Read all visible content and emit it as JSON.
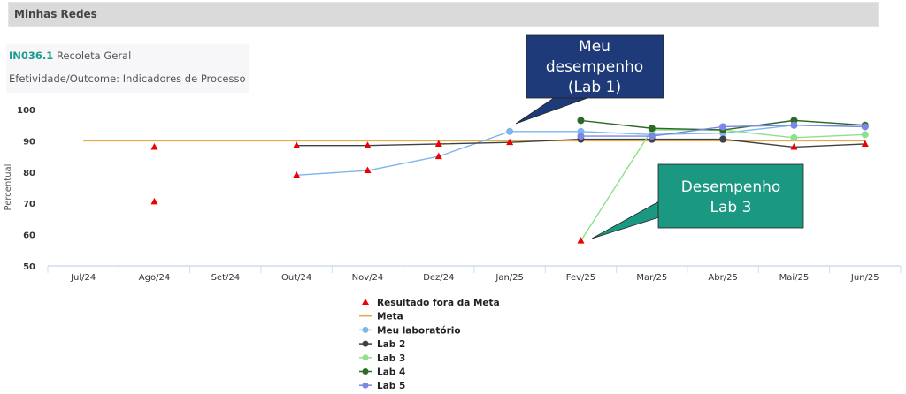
{
  "header": {
    "title": "Minhas Redes"
  },
  "info": {
    "code": "IN036.1",
    "name": "Recoleta Geral",
    "subtitle": "Efetividade/Outcome: Indicadores de Processo"
  },
  "callouts": [
    {
      "lines": [
        "Meu",
        "desempenho",
        "(Lab 1)"
      ],
      "bg": "#1e3a78"
    },
    {
      "lines": [
        "Desempenho",
        "Lab 3"
      ],
      "bg": "#1b9882"
    }
  ],
  "chart_data": {
    "type": "line",
    "title": "",
    "xlabel": "",
    "ylabel": "Percentual",
    "ylim": [
      50,
      100
    ],
    "yticks": [
      50,
      60,
      70,
      80,
      90,
      100
    ],
    "categories": [
      "Jul/24",
      "Ago/24",
      "Set/24",
      "Out/24",
      "Nov/24",
      "Dez/24",
      "Jan/25",
      "Fev/25",
      "Mar/25",
      "Abr/25",
      "Mai/25",
      "Jun/25"
    ],
    "legend_position": "bottom",
    "series": [
      {
        "name": "Meta",
        "color": "#e6a94a",
        "marker": "none",
        "values": [
          90,
          90,
          90,
          90,
          90,
          90,
          90,
          90,
          90,
          90,
          90,
          90
        ]
      },
      {
        "name": "Meu laboratório",
        "color": "#7fb6ea",
        "marker": "circle",
        "values": [
          null,
          null,
          null,
          79,
          80.5,
          85,
          93,
          93,
          92,
          92.5,
          95,
          94.5
        ]
      },
      {
        "name": "Lab 2",
        "color": "#3c4248",
        "marker": "circle",
        "values": [
          null,
          null,
          null,
          88.5,
          88.5,
          89,
          89.5,
          90.5,
          90.5,
          90.5,
          88,
          89
        ]
      },
      {
        "name": "Lab 3",
        "color": "#8ee08a",
        "marker": "circle",
        "values": [
          null,
          null,
          null,
          null,
          null,
          null,
          null,
          58,
          93.5,
          93.5,
          91,
          92
        ]
      },
      {
        "name": "Lab 4",
        "color": "#2d6a2a",
        "marker": "circle",
        "values": [
          null,
          null,
          null,
          null,
          null,
          null,
          null,
          96.5,
          94,
          93.5,
          96.5,
          95
        ]
      },
      {
        "name": "Lab 5",
        "color": "#7b86e6",
        "marker": "circle",
        "values": [
          null,
          null,
          null,
          null,
          null,
          null,
          null,
          91.5,
          91.5,
          94.5,
          95,
          94.5
        ]
      }
    ],
    "out_of_target": {
      "name": "Resultado fora da Meta",
      "color": "#ee0000",
      "marker": "triangle",
      "points": [
        {
          "x": "Ago/24",
          "y": 88
        },
        {
          "x": "Ago/24",
          "y": 70.5
        },
        {
          "x": "Out/24",
          "y": 88.5
        },
        {
          "x": "Out/24",
          "y": 79
        },
        {
          "x": "Nov/24",
          "y": 88.5
        },
        {
          "x": "Nov/24",
          "y": 80.5
        },
        {
          "x": "Dez/24",
          "y": 89
        },
        {
          "x": "Dez/24",
          "y": 85
        },
        {
          "x": "Jan/25",
          "y": 89.5
        },
        {
          "x": "Fev/25",
          "y": 58
        },
        {
          "x": "Mai/25",
          "y": 88
        },
        {
          "x": "Jun/25",
          "y": 89
        }
      ]
    },
    "annotations": [
      "Meu desempenho (Lab 1)",
      "Desempenho Lab 3"
    ]
  },
  "legend": [
    {
      "label": "Resultado fora da Meta",
      "type": "triangle",
      "color": "#ee0000"
    },
    {
      "label": "Meta",
      "type": "line",
      "color": "#e6a94a"
    },
    {
      "label": "Meu laboratório",
      "type": "circle",
      "color": "#7fb6ea"
    },
    {
      "label": "Lab 2",
      "type": "circle",
      "color": "#3c4248"
    },
    {
      "label": "Lab 3",
      "type": "circle",
      "color": "#8ee08a"
    },
    {
      "label": "Lab 4",
      "type": "circle",
      "color": "#2d6a2a"
    },
    {
      "label": "Lab 5",
      "type": "circle",
      "color": "#7b86e6"
    }
  ]
}
